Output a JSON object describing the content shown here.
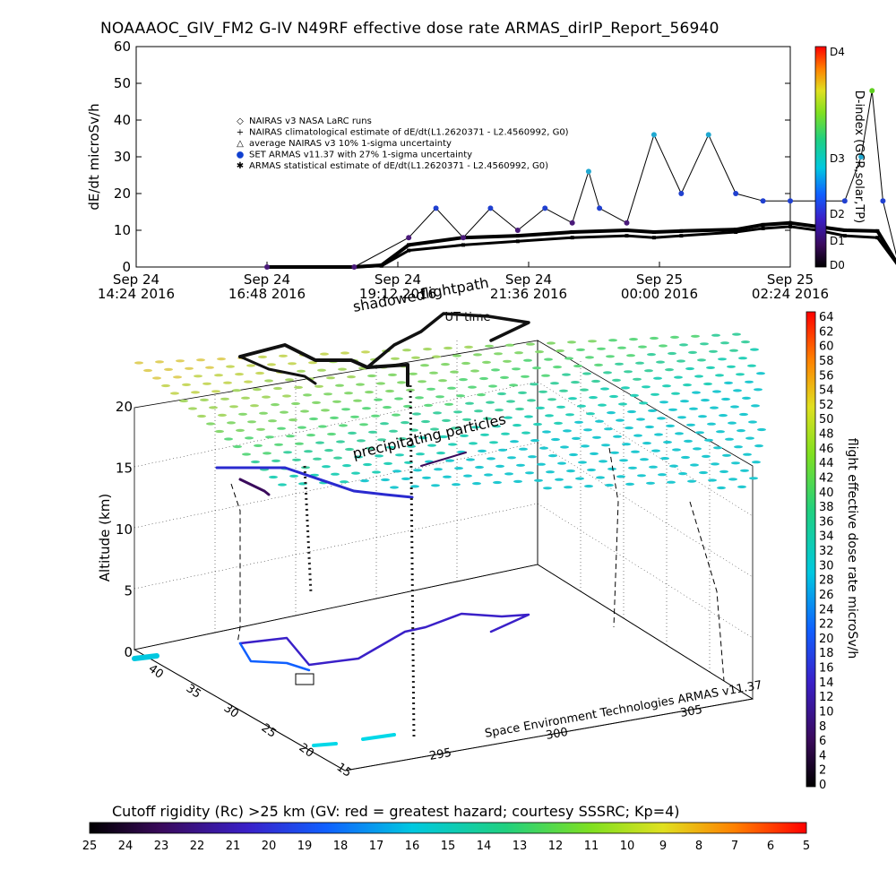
{
  "title": "NOAAAOC_GIV_FM2 G-IV    N49RF   effective dose rate ARMAS_dirIP_Report_56940",
  "top_chart": {
    "ylabel": "dE/dt microSv/h",
    "yticks": [
      "0",
      "10",
      "20",
      "30",
      "40",
      "50",
      "60"
    ],
    "xticks": [
      {
        "l1": "Sep 24",
        "l2": "14:24 2016"
      },
      {
        "l1": "Sep 24",
        "l2": "16:48 2016"
      },
      {
        "l1": "Sep 24",
        "l2": "19:12 2016"
      },
      {
        "l1": "Sep 24",
        "l2": "21:36 2016"
      },
      {
        "l1": "Sep 25",
        "l2": "00:00 2016"
      },
      {
        "l1": "Sep 25",
        "l2": "02:24 2016"
      }
    ],
    "xlabel": "UT time",
    "legend": [
      {
        "sym": "◇",
        "text": "NAIRAS v3 NASA LaRC runs"
      },
      {
        "sym": "+",
        "text": "NAIRAS climatological estimate of dE/dt(L1.2620371 - L2.4560992, G0)"
      },
      {
        "sym": "△",
        "text": "average NAIRAS v3 10% 1-sigma uncertainty"
      },
      {
        "sym": "●",
        "text": "SET ARMAS v11.37 with 27% 1-sigma uncertainty"
      },
      {
        "sym": "✱",
        "text": "ARMAS statistical estimate of dE/dt(L1.2620371 - L2.4560992, G0)"
      }
    ],
    "dindex": {
      "label": "D-index (GCR,solar,TP)",
      "ticks": [
        "D4",
        "D3",
        "D2",
        "D1",
        "D0"
      ]
    }
  },
  "chart_data": [
    {
      "type": "line",
      "title": "NOAAAOC_GIV_FM2 G-IV    N49RF   effective dose rate ARMAS_dirIP_Report_56940",
      "xlabel": "UT time",
      "ylabel": "dE/dt microSv/h",
      "ylim": [
        0,
        60
      ],
      "x_unit": "hours since Sep 24 14:24 2016",
      "series": [
        {
          "name": "NAIRAS climatological estimate",
          "x": [
            2.4,
            3.0,
            4.0,
            4.5,
            5.0,
            6.0,
            7.0,
            8.0,
            9.0,
            9.5,
            10.0,
            11.0,
            11.5,
            12.0,
            12.5,
            13.0,
            13.6,
            14.0
          ],
          "y": [
            0,
            0,
            0,
            0.5,
            6.0,
            8.0,
            8.5,
            9.5,
            10.0,
            9.5,
            9.8,
            10.2,
            11.5,
            12.0,
            11.0,
            10.0,
            9.8,
            0
          ]
        },
        {
          "name": "ARMAS statistical estimate",
          "x": [
            2.4,
            3.0,
            4.0,
            4.5,
            5.0,
            6.0,
            7.0,
            8.0,
            9.0,
            9.5,
            10.0,
            11.0,
            11.5,
            12.0,
            12.5,
            13.0,
            13.6,
            14.0
          ],
          "y": [
            0,
            0,
            0,
            0.3,
            4.5,
            6.0,
            7.0,
            8.0,
            8.5,
            8.0,
            8.5,
            9.5,
            10.5,
            11.0,
            10.0,
            8.5,
            8.0,
            0
          ]
        },
        {
          "name": "SET ARMAS v11.37",
          "x": [
            2.4,
            4.0,
            5.0,
            5.5,
            6.0,
            6.5,
            7.0,
            7.5,
            8.0,
            8.3,
            8.5,
            9.0,
            9.5,
            10.0,
            10.5,
            11.0,
            11.5,
            12.0,
            12.5,
            13.0,
            13.3,
            13.5,
            13.7,
            14.0
          ],
          "y": [
            0,
            0,
            8,
            16,
            8,
            16,
            10,
            16,
            12,
            26,
            16,
            12,
            36,
            20,
            36,
            20,
            18,
            18,
            18,
            18,
            30,
            48,
            18,
            0
          ]
        }
      ]
    },
    {
      "type": "scatter",
      "title": "shadow-flight-path",
      "zlabel": "Altitude (km)",
      "zticks": [
        "0",
        "5",
        "10",
        "15",
        "20"
      ],
      "lat_ticks": [
        "40",
        "35",
        "30",
        "25",
        "20",
        "15"
      ],
      "lon_ticks": [
        "295",
        "300",
        "305"
      ]
    }
  ],
  "three_d": {
    "label_shadow": "shadowed",
    "label_flight": "flightpath",
    "label_precip": "precipitating particles",
    "zlabel": "Altitude (km)",
    "zticks": [
      "0",
      "5",
      "10",
      "15",
      "20"
    ],
    "lat_ticks": [
      "40",
      "35",
      "30",
      "25",
      "20",
      "15"
    ],
    "lon_ticks": [
      "295",
      "300",
      "305"
    ],
    "footer": "Space Environment Technologies ARMAS v11.37"
  },
  "right_bar": {
    "label": "flight effective dose rate microSv/h",
    "ticks": [
      "64",
      "62",
      "60",
      "58",
      "56",
      "54",
      "52",
      "50",
      "48",
      "46",
      "44",
      "42",
      "40",
      "38",
      "36",
      "34",
      "32",
      "30",
      "28",
      "26",
      "24",
      "22",
      "20",
      "18",
      "16",
      "14",
      "12",
      "10",
      "8",
      "6",
      "4",
      "2",
      "0"
    ]
  },
  "bottom_bar": {
    "label": "Cutoff rigidity (Rc) >25 km (GV: red = greatest hazard; courtesy SSSRC; Kp=4)",
    "ticks": [
      "25",
      "24",
      "23",
      "22",
      "21",
      "20",
      "19",
      "18",
      "17",
      "16",
      "15",
      "14",
      "13",
      "12",
      "11",
      "10",
      "9",
      "8",
      "7",
      "6",
      "5"
    ]
  }
}
